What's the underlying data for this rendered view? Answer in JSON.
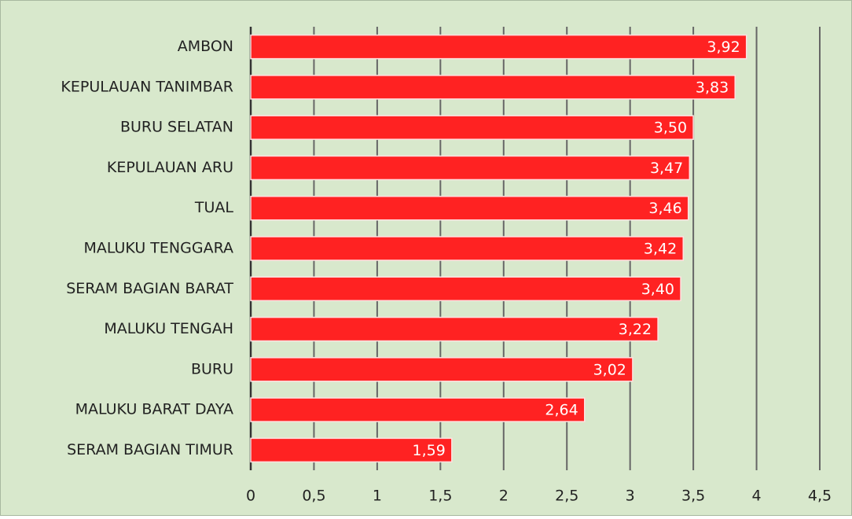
{
  "chart_data": {
    "type": "bar",
    "orientation": "horizontal",
    "categories": [
      "AMBON",
      "KEPULAUAN TANIMBAR",
      "BURU SELATAN",
      "KEPULAUAN ARU",
      "TUAL",
      "MALUKU TENGGARA",
      "SERAM BAGIAN BARAT",
      "MALUKU TENGAH",
      "BURU",
      "MALUKU BARAT DAYA",
      "SERAM BAGIAN TIMUR"
    ],
    "values": [
      3.92,
      3.83,
      3.5,
      3.47,
      3.46,
      3.42,
      3.4,
      3.22,
      3.02,
      2.64,
      1.59
    ],
    "value_labels": [
      "3,92",
      "3,83",
      "3,50",
      "3,47",
      "3,46",
      "3,42",
      "3,40",
      "3,22",
      "3,02",
      "2,64",
      "1,59"
    ],
    "color": "#ff2222",
    "xlim": [
      0,
      4.5
    ],
    "xticks": [
      0,
      {
        "value": 0.5,
        "label": "0,5"
      },
      1,
      {
        "value": 1.5,
        "label": "1,5"
      },
      2,
      {
        "value": 2.5,
        "label": "2,5"
      },
      3,
      {
        "value": 3.5,
        "label": "3,5"
      },
      4,
      {
        "value": 4.5,
        "label": "4,5"
      }
    ],
    "grid": true
  }
}
